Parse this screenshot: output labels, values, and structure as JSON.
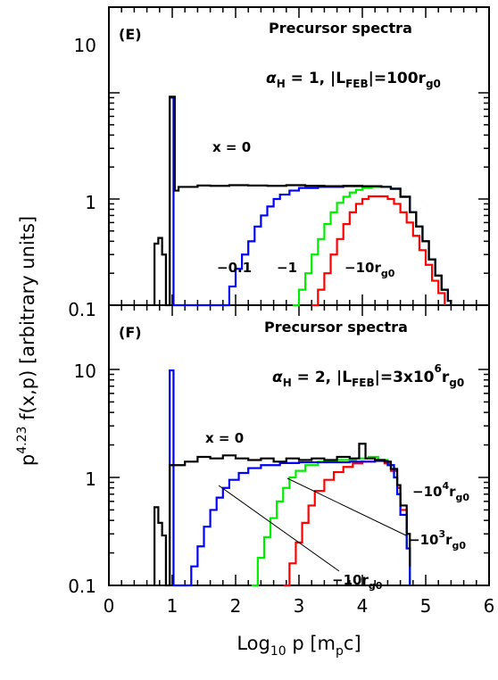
{
  "figure": {
    "ylabel_main": "p",
    "ylabel_exp": "4.23",
    "ylabel_rest": " f(x,p)  [arbitrary units]",
    "xlabel_main": "Log",
    "xlabel_sub": "10",
    "xlabel_mid": " p  [m",
    "xlabel_sub2": "p",
    "xlabel_end": "c]",
    "xticks": [
      "0",
      "1",
      "2",
      "3",
      "4",
      "5",
      "6"
    ],
    "yticks": [
      "10",
      "1",
      "0.1"
    ]
  },
  "panels": [
    {
      "letter": "(E)",
      "title": "Precursor spectra",
      "param": {
        "alpha": "α",
        "alpha_sub": "H",
        "eq1": " = 1,  |L",
        "L_sub": "FEB",
        "eq2": "|=100r",
        "r_sub": "g0"
      },
      "labels": [
        {
          "main": "x = 0",
          "sub": ""
        },
        {
          "main": "−0.1",
          "sub": ""
        },
        {
          "main": "−1",
          "sub": ""
        },
        {
          "main": "−10r",
          "sub": "g0"
        }
      ]
    },
    {
      "letter": "(F)",
      "title": "Precursor spectra",
      "param": {
        "alpha": "α",
        "alpha_sub": "H",
        "eq1": " = 2,  |L",
        "L_sub": "FEB",
        "eq2": "|=3x10",
        "sup": "6",
        "eq3": "r",
        "r_sub": "g0"
      },
      "labels": [
        {
          "main": "x = 0",
          "sup": "",
          "sub": ""
        },
        {
          "main": "−10",
          "sup": "4",
          "end": "r",
          "sub": "g0"
        },
        {
          "main": "−10",
          "sup": "3",
          "end": "r",
          "sub": "g0"
        },
        {
          "main": "−10r",
          "sup": "",
          "sub": "g0"
        }
      ]
    }
  ],
  "chart_data": [
    {
      "type": "line",
      "panel": "E",
      "xlabel": "Log10 p [mpc]",
      "ylabel": "p^4.23 f(x,p) [arbitrary units]",
      "xlim": [
        0,
        6
      ],
      "ylim": [
        0.1,
        15
      ],
      "yscale": "log",
      "step": true,
      "series": [
        {
          "name": "x = 0",
          "color": "#000000",
          "points": [
            [
              0.72,
              0.1
            ],
            [
              0.72,
              0.38
            ],
            [
              0.78,
              0.38
            ],
            [
              0.78,
              0.43
            ],
            [
              0.84,
              0.43
            ],
            [
              0.84,
              0.3
            ],
            [
              0.9,
              0.3
            ],
            [
              0.9,
              0.1
            ],
            [
              0.96,
              0.1
            ],
            [
              0.96,
              9.2
            ],
            [
              1.04,
              9.2
            ],
            [
              1.04,
              1.2
            ],
            [
              1.1,
              1.2
            ],
            [
              1.1,
              1.3
            ],
            [
              1.3,
              1.3
            ],
            [
              1.4,
              1.34
            ],
            [
              1.6,
              1.33
            ],
            [
              1.9,
              1.35
            ],
            [
              2.2,
              1.34
            ],
            [
              2.5,
              1.33
            ],
            [
              2.8,
              1.35
            ],
            [
              3.1,
              1.33
            ],
            [
              3.4,
              1.32
            ],
            [
              3.7,
              1.33
            ],
            [
              4.0,
              1.32
            ],
            [
              4.3,
              1.3
            ],
            [
              4.45,
              1.25
            ],
            [
              4.6,
              1.05
            ],
            [
              4.75,
              0.75
            ],
            [
              4.85,
              0.55
            ],
            [
              4.95,
              0.4
            ],
            [
              5.05,
              0.27
            ],
            [
              5.15,
              0.19
            ],
            [
              5.25,
              0.14
            ],
            [
              5.35,
              0.11
            ],
            [
              5.4,
              0.1
            ]
          ]
        },
        {
          "name": "-0.1",
          "color": "#0000ff",
          "points": [
            [
              0.96,
              0.1
            ],
            [
              0.96,
              9.0
            ],
            [
              1.02,
              9.0
            ],
            [
              1.02,
              0.1
            ],
            [
              1.8,
              0.1
            ],
            [
              1.9,
              0.15
            ],
            [
              2.0,
              0.22
            ],
            [
              2.1,
              0.3
            ],
            [
              2.2,
              0.4
            ],
            [
              2.3,
              0.55
            ],
            [
              2.4,
              0.7
            ],
            [
              2.5,
              0.85
            ],
            [
              2.6,
              1.0
            ],
            [
              2.7,
              1.1
            ],
            [
              2.85,
              1.2
            ],
            [
              3.0,
              1.27
            ],
            [
              3.3,
              1.3
            ],
            [
              3.7,
              1.32
            ],
            [
              4.0,
              1.32
            ],
            [
              4.3,
              1.3
            ],
            [
              4.45,
              1.25
            ],
            [
              4.6,
              1.05
            ],
            [
              4.75,
              0.75
            ],
            [
              4.85,
              0.55
            ],
            [
              4.95,
              0.4
            ],
            [
              5.05,
              0.27
            ],
            [
              5.15,
              0.19
            ],
            [
              5.25,
              0.14
            ],
            [
              5.35,
              0.11
            ],
            [
              5.4,
              0.1
            ]
          ]
        },
        {
          "name": "-1",
          "color": "#00ee00",
          "points": [
            [
              2.9,
              0.1
            ],
            [
              3.0,
              0.14
            ],
            [
              3.1,
              0.2
            ],
            [
              3.2,
              0.3
            ],
            [
              3.3,
              0.42
            ],
            [
              3.4,
              0.58
            ],
            [
              3.5,
              0.75
            ],
            [
              3.6,
              0.92
            ],
            [
              3.7,
              1.05
            ],
            [
              3.8,
              1.15
            ],
            [
              3.9,
              1.22
            ],
            [
              4.0,
              1.27
            ],
            [
              4.15,
              1.3
            ],
            [
              4.3,
              1.3
            ],
            [
              4.45,
              1.25
            ],
            [
              4.6,
              1.05
            ],
            [
              4.75,
              0.75
            ],
            [
              4.85,
              0.55
            ],
            [
              4.95,
              0.4
            ],
            [
              5.05,
              0.27
            ],
            [
              5.15,
              0.19
            ],
            [
              5.25,
              0.14
            ],
            [
              5.35,
              0.11
            ],
            [
              5.4,
              0.1
            ]
          ]
        },
        {
          "name": "-10rg0",
          "color": "#ff0000",
          "points": [
            [
              3.2,
              0.1
            ],
            [
              3.3,
              0.14
            ],
            [
              3.4,
              0.2
            ],
            [
              3.5,
              0.3
            ],
            [
              3.6,
              0.42
            ],
            [
              3.7,
              0.58
            ],
            [
              3.8,
              0.75
            ],
            [
              3.9,
              0.9
            ],
            [
              4.0,
              1.0
            ],
            [
              4.1,
              1.06
            ],
            [
              4.25,
              1.06
            ],
            [
              4.4,
              1.0
            ],
            [
              4.5,
              0.9
            ],
            [
              4.6,
              0.75
            ],
            [
              4.7,
              0.6
            ],
            [
              4.8,
              0.45
            ],
            [
              4.9,
              0.33
            ],
            [
              5.0,
              0.24
            ],
            [
              5.1,
              0.17
            ],
            [
              5.2,
              0.13
            ],
            [
              5.3,
              0.1
            ]
          ]
        }
      ]
    },
    {
      "type": "line",
      "panel": "F",
      "xlabel": "Log10 p [mpc]",
      "ylabel": "p^4.23 f(x,p) [arbitrary units]",
      "xlim": [
        0,
        6
      ],
      "ylim": [
        0.1,
        15
      ],
      "yscale": "log",
      "step": true,
      "series": [
        {
          "name": "x = 0",
          "color": "#000000",
          "points": [
            [
              0.72,
              0.1
            ],
            [
              0.72,
              0.53
            ],
            [
              0.78,
              0.53
            ],
            [
              0.78,
              0.38
            ],
            [
              0.84,
              0.38
            ],
            [
              0.84,
              0.29
            ],
            [
              0.9,
              0.29
            ],
            [
              0.9,
              0.1
            ],
            [
              0.96,
              0.1
            ],
            [
              0.96,
              1.3
            ],
            [
              1.05,
              1.3
            ],
            [
              1.2,
              1.4
            ],
            [
              1.4,
              1.55
            ],
            [
              1.6,
              1.5
            ],
            [
              1.8,
              1.6
            ],
            [
              2.0,
              1.5
            ],
            [
              2.2,
              1.45
            ],
            [
              2.4,
              1.5
            ],
            [
              2.6,
              1.4
            ],
            [
              2.8,
              1.5
            ],
            [
              3.0,
              1.45
            ],
            [
              3.2,
              1.5
            ],
            [
              3.4,
              1.45
            ],
            [
              3.6,
              1.55
            ],
            [
              3.8,
              1.5
            ],
            [
              3.95,
              2.05
            ],
            [
              4.05,
              1.5
            ],
            [
              4.2,
              1.45
            ],
            [
              4.35,
              1.4
            ],
            [
              4.45,
              1.2
            ],
            [
              4.55,
              0.85
            ],
            [
              4.6,
              0.55
            ],
            [
              4.7,
              0.3
            ],
            [
              4.75,
              0.15
            ]
          ]
        },
        {
          "name": "-10rg0",
          "color": "#0000ff",
          "points": [
            [
              0.96,
              0.1
            ],
            [
              0.96,
              9.8
            ],
            [
              1.02,
              9.8
            ],
            [
              1.02,
              0.1
            ],
            [
              1.22,
              0.1
            ],
            [
              1.3,
              0.15
            ],
            [
              1.4,
              0.23
            ],
            [
              1.5,
              0.35
            ],
            [
              1.6,
              0.5
            ],
            [
              1.7,
              0.65
            ],
            [
              1.8,
              0.8
            ],
            [
              1.9,
              0.95
            ],
            [
              2.05,
              1.1
            ],
            [
              2.2,
              1.22
            ],
            [
              2.4,
              1.3
            ],
            [
              2.7,
              1.36
            ],
            [
              3.0,
              1.38
            ],
            [
              3.4,
              1.38
            ],
            [
              3.8,
              1.4
            ],
            [
              4.2,
              1.42
            ],
            [
              4.4,
              1.3
            ],
            [
              4.5,
              1.0
            ],
            [
              4.55,
              0.7
            ],
            [
              4.6,
              0.45
            ],
            [
              4.7,
              0.22
            ],
            [
              4.75,
              0.1
            ]
          ]
        },
        {
          "name": "-10^3rg0",
          "color": "#00ee00",
          "points": [
            [
              2.25,
              0.1
            ],
            [
              2.35,
              0.18
            ],
            [
              2.45,
              0.28
            ],
            [
              2.55,
              0.42
            ],
            [
              2.65,
              0.6
            ],
            [
              2.75,
              0.8
            ],
            [
              2.85,
              1.0
            ],
            [
              2.95,
              1.15
            ],
            [
              3.1,
              1.3
            ],
            [
              3.3,
              1.4
            ],
            [
              3.6,
              1.45
            ],
            [
              3.9,
              1.5
            ],
            [
              4.1,
              1.55
            ],
            [
              4.25,
              1.45
            ],
            [
              4.4,
              1.3
            ],
            [
              4.5,
              1.0
            ],
            [
              4.55,
              0.7
            ],
            [
              4.6,
              0.45
            ],
            [
              4.7,
              0.22
            ],
            [
              4.75,
              0.1
            ]
          ]
        },
        {
          "name": "-10^4rg0",
          "color": "#ff0000",
          "points": [
            [
              2.75,
              0.1
            ],
            [
              2.85,
              0.16
            ],
            [
              2.95,
              0.25
            ],
            [
              3.05,
              0.38
            ],
            [
              3.15,
              0.55
            ],
            [
              3.25,
              0.75
            ],
            [
              3.4,
              0.95
            ],
            [
              3.55,
              1.12
            ],
            [
              3.7,
              1.25
            ],
            [
              3.85,
              1.35
            ],
            [
              4.0,
              1.4
            ],
            [
              4.2,
              1.45
            ],
            [
              4.35,
              1.35
            ],
            [
              4.45,
              1.15
            ],
            [
              4.55,
              0.8
            ],
            [
              4.6,
              0.5
            ],
            [
              4.7,
              0.22
            ],
            [
              4.75,
              0.1
            ]
          ]
        }
      ]
    }
  ]
}
